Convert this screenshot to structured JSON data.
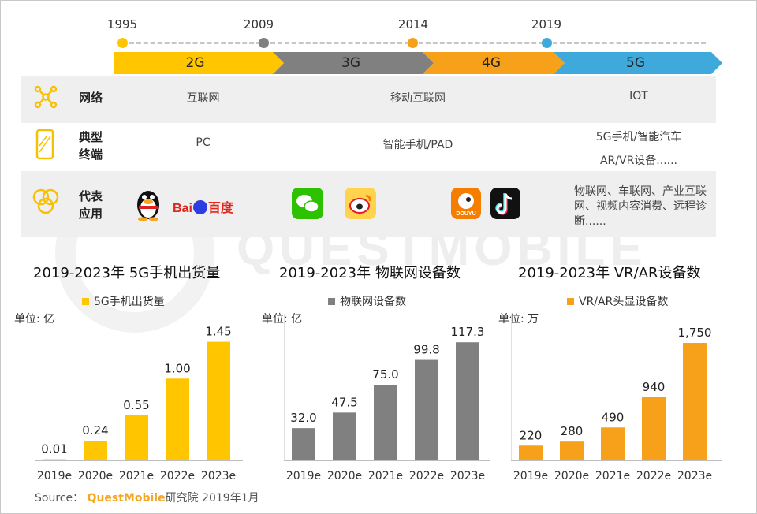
{
  "watermark": "QUESTMOBILE",
  "timeline": {
    "years": [
      "1995",
      "2009",
      "2014",
      "2019"
    ],
    "generations": [
      {
        "label": "2G",
        "color": "#ffc600"
      },
      {
        "label": "3G",
        "color": "#808080"
      },
      {
        "label": "4G",
        "color": "#f7a01a"
      },
      {
        "label": "5G",
        "color": "#3fa9dc"
      }
    ]
  },
  "table": {
    "network": {
      "header": "网络",
      "c1": "互联网",
      "c2": "移动互联网",
      "c3": "IOT"
    },
    "terminal": {
      "header_line1": "典型",
      "header_line2": "终端",
      "c1": "PC",
      "c2": "智能手机/PAD",
      "c3_line1": "5G手机/智能汽车",
      "c3_line2": "AR/VR设备......"
    },
    "apps": {
      "header_line1": "代表",
      "header_line2": "应用",
      "baidu_text": "Bai",
      "baidu_cn": "百度",
      "douyu_text": "DOUYU",
      "c3": "物联网、车联网、产业互联网、视频内容消费、远程诊断......"
    }
  },
  "chart_data": [
    {
      "type": "bar",
      "title": "2019-2023年 5G手机出货量",
      "legend": "5G手机出货量",
      "unit": "单位: 亿",
      "color": "#ffc600",
      "categories": [
        "2019e",
        "2020e",
        "2021e",
        "2022e",
        "2023e"
      ],
      "values": [
        0.01,
        0.24,
        0.55,
        1.0,
        1.45
      ],
      "labels": [
        "0.01",
        "0.24",
        "0.55",
        "1.00",
        "1.45"
      ],
      "ylim": [
        0,
        1.6
      ]
    },
    {
      "type": "bar",
      "title": "2019-2023年 物联网设备数",
      "legend": "物联网设备数",
      "unit": "单位: 亿",
      "color": "#808080",
      "categories": [
        "2019e",
        "2020e",
        "2021e",
        "2022e",
        "2023e"
      ],
      "values": [
        32.0,
        47.5,
        75.0,
        99.8,
        117.3
      ],
      "labels": [
        "32.0",
        "47.5",
        "75.0",
        "99.8",
        "117.3"
      ],
      "ylim": [
        0,
        130
      ]
    },
    {
      "type": "bar",
      "title": "2019-2023年 VR/AR设备数",
      "legend": "VR/AR头显设备数",
      "unit": "单位: 万",
      "color": "#f7a01a",
      "categories": [
        "2019e",
        "2020e",
        "2021e",
        "2022e",
        "2023e"
      ],
      "values": [
        220,
        280,
        490,
        940,
        1750
      ],
      "labels": [
        "220",
        "280",
        "490",
        "940",
        "1,750"
      ],
      "ylim": [
        0,
        1950
      ]
    }
  ],
  "source": {
    "prefix": "Source：",
    "brand": "QuestMobile",
    "suffix": "研究院 2019年1月"
  }
}
